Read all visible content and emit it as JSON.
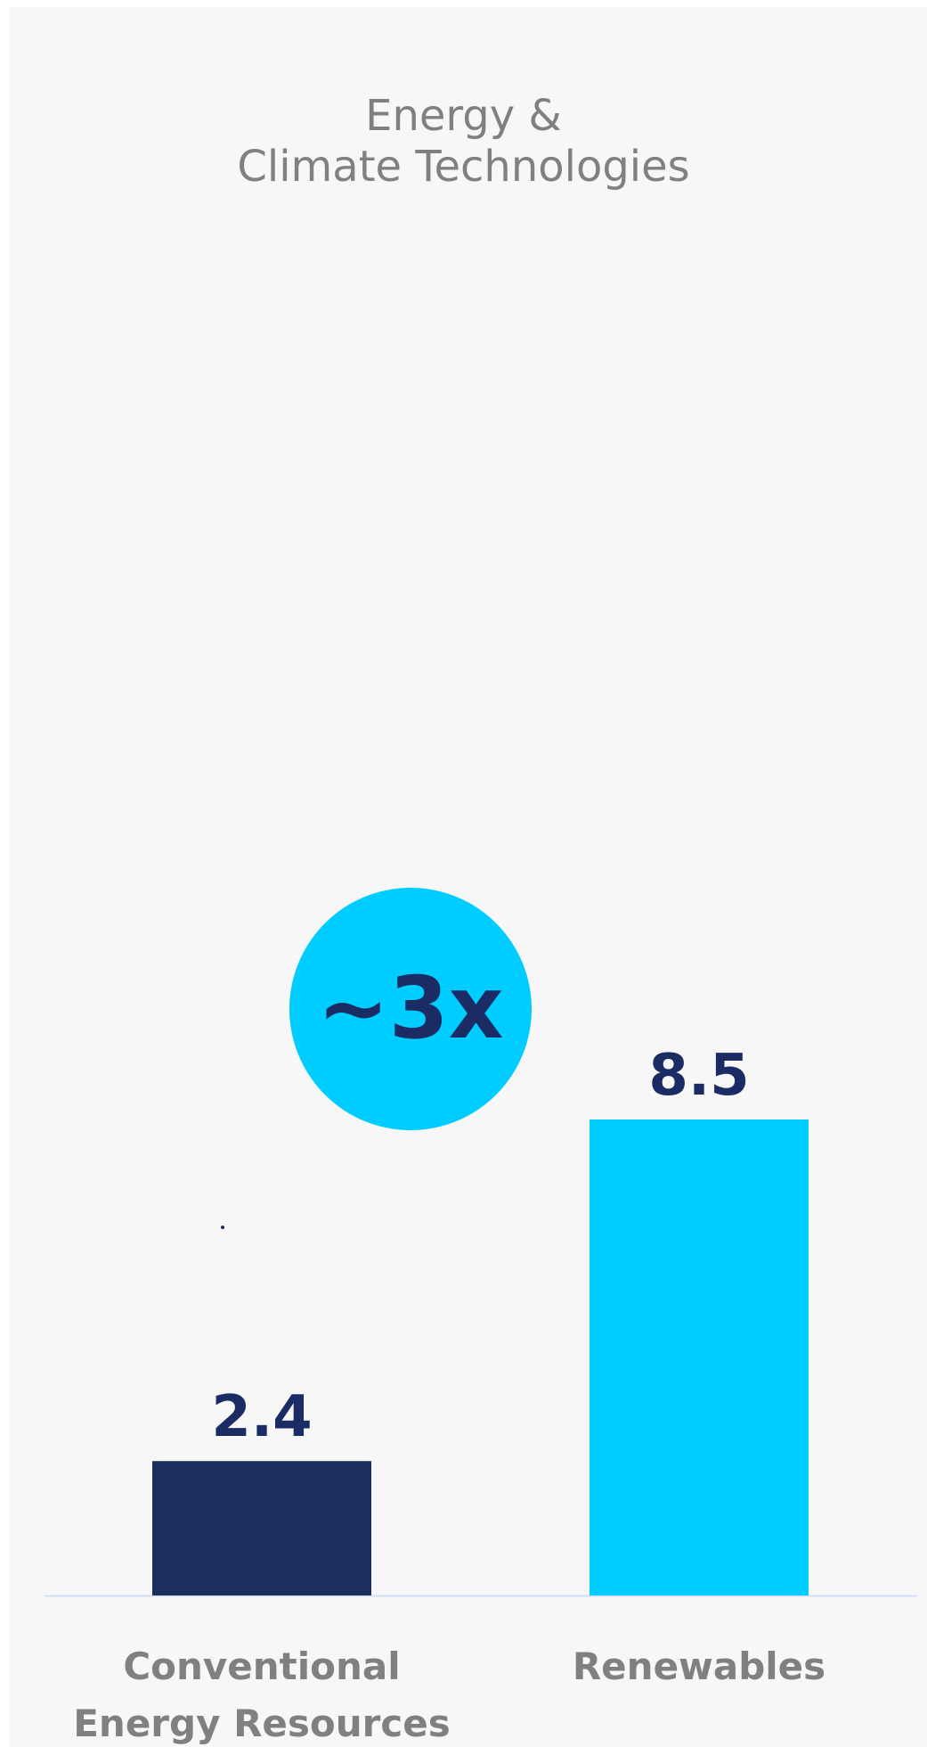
{
  "chart_data": {
    "type": "bar",
    "title_lines": [
      "Energy &",
      "Climate Technologies"
    ],
    "categories": [
      [
        "Conventional",
        "Energy Resources"
      ],
      [
        "Renewables"
      ]
    ],
    "values": [
      2.4,
      8.5
    ],
    "value_labels": [
      "2.4",
      "8.5"
    ],
    "annotation": "~3x",
    "ylim": [
      0,
      8.5
    ],
    "grid": false,
    "colors": [
      "#1b305c",
      "#00cdff"
    ],
    "annotation_color": "#00cdff",
    "text_color": "#1b2b63",
    "label_color": "#808080"
  }
}
